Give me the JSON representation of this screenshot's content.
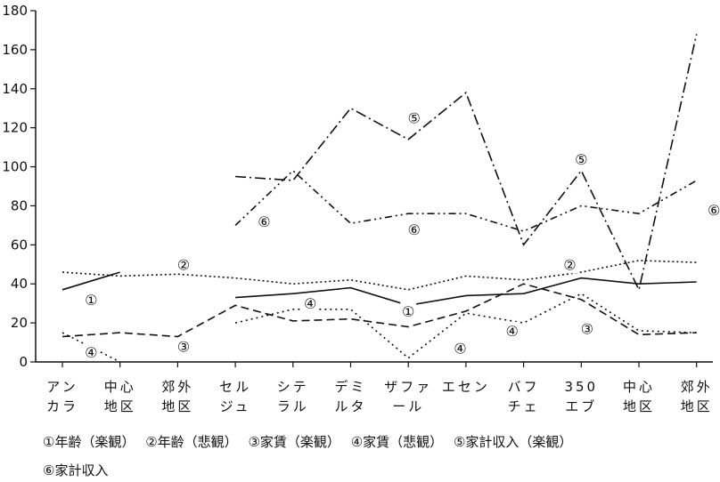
{
  "chart_data": {
    "type": "line",
    "title": "",
    "xlabel": "",
    "ylabel": "",
    "ylim": [
      0,
      180
    ],
    "yticks": [
      0,
      20,
      40,
      60,
      80,
      100,
      120,
      140,
      160,
      180
    ],
    "grid": false,
    "categories": [
      [
        "アン",
        "カラ"
      ],
      [
        "中心",
        "地区"
      ],
      [
        "郊外",
        "地区"
      ],
      [
        "セル",
        "ジュ"
      ],
      [
        "シテ",
        "ラル"
      ],
      [
        "デミ",
        "ルタ"
      ],
      [
        "ザファ",
        "ール"
      ],
      [
        "エセン",
        ""
      ],
      [
        "バフ",
        "チェ"
      ],
      [
        "350",
        "エブ"
      ],
      [
        "中心",
        "地区"
      ],
      [
        "郊外",
        "地区"
      ]
    ],
    "series": [
      {
        "name": "①年齢（楽観）",
        "marker": "①",
        "values": [
          37,
          46,
          null,
          33,
          35,
          38,
          29,
          34,
          35,
          43,
          40,
          41
        ]
      },
      {
        "name": "②年齢（悲観）",
        "marker": "②",
        "values": [
          46,
          44,
          45,
          43,
          40,
          42,
          37,
          44,
          42,
          46,
          52,
          51
        ]
      },
      {
        "name": "③家賃（楽観）",
        "marker": "③",
        "values": [
          13,
          15,
          13,
          29,
          21,
          22,
          18,
          26,
          40,
          32,
          14,
          15
        ]
      },
      {
        "name": "④家賃（悲観）",
        "marker": "④",
        "values": [
          15,
          0,
          null,
          20,
          27,
          27,
          2,
          25,
          20,
          35,
          16,
          15
        ]
      },
      {
        "name": "⑤家計収入（楽観）",
        "marker": "⑤",
        "values": [
          null,
          null,
          null,
          95,
          93,
          130,
          114,
          138,
          60,
          98,
          37,
          168
        ]
      },
      {
        "name": "⑥家計収入",
        "marker": "⑥",
        "values": [
          null,
          null,
          null,
          70,
          98,
          71,
          76,
          76,
          67,
          80,
          76,
          93
        ]
      }
    ],
    "annotations": [
      {
        "text": "①",
        "x": 0.5,
        "y": 32
      },
      {
        "text": "①",
        "x": 6.0,
        "y": 26
      },
      {
        "text": "②",
        "x": 2.1,
        "y": 50
      },
      {
        "text": "②",
        "x": 8.8,
        "y": 50
      },
      {
        "text": "③",
        "x": 2.1,
        "y": 8
      },
      {
        "text": "③",
        "x": 9.1,
        "y": 17
      },
      {
        "text": "④",
        "x": 0.5,
        "y": 5
      },
      {
        "text": "④",
        "x": 4.3,
        "y": 30
      },
      {
        "text": "④",
        "x": 6.9,
        "y": 7
      },
      {
        "text": "④",
        "x": 7.8,
        "y": 16
      },
      {
        "text": "⑤",
        "x": 6.1,
        "y": 125
      },
      {
        "text": "⑤",
        "x": 9.0,
        "y": 104
      },
      {
        "text": "⑥",
        "x": 3.5,
        "y": 72
      },
      {
        "text": "⑥",
        "x": 6.1,
        "y": 68
      },
      {
        "text": "⑥",
        "x": 11.3,
        "y": 78
      }
    ]
  },
  "legend": {
    "row1": [
      "①年齢（楽観）",
      "②年齢（悲観）",
      "③家賃（楽観）",
      "④家賃（悲観）",
      "⑤家計収入（楽観）"
    ],
    "row2": [
      "⑥家計収入"
    ]
  }
}
